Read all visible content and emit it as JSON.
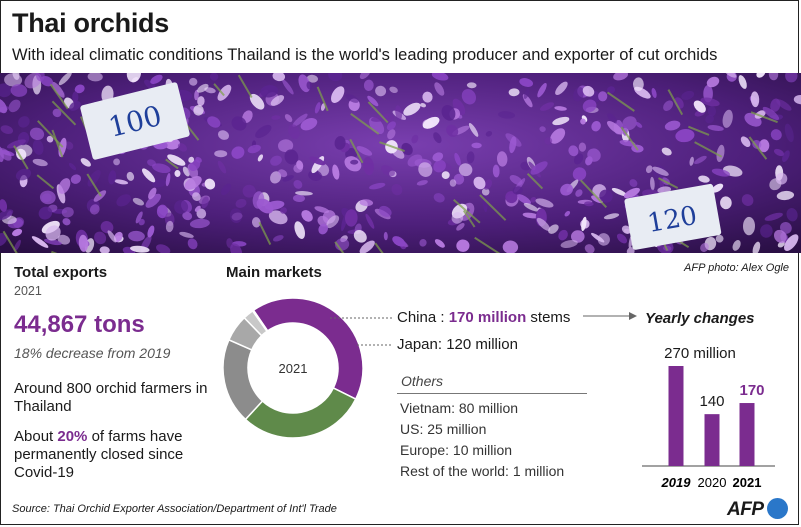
{
  "title": "Thai orchids",
  "subtitle": "With ideal climatic conditions Thailand is the world's leading producer and exporter of cut orchids",
  "photo": {
    "tag_left": "100",
    "tag_right": "120",
    "credit": "AFP photo: Alex Ogle"
  },
  "total": {
    "heading": "Total exports",
    "year": "2021",
    "tons": "44,867 tons",
    "decrease": "18% decrease from 2019",
    "fact1": "Around 800 orchid farmers in Thailand",
    "fact2_prefix": "About ",
    "fact2_pct": "20%",
    "fact2_suffix": " of farms have permanently closed since Covid-19"
  },
  "markets": {
    "heading": "Main markets",
    "center_label": "2021",
    "china_prefix": "China : ",
    "china_value": "170 million",
    "china_suffix": " stems",
    "japan": "Japan: 120 million",
    "others_label": "Others",
    "others": [
      "Vietnam: 80 million",
      "US: 25 million",
      "Europe: 10 million",
      "Rest of the world: 1 million"
    ]
  },
  "footer": {
    "source": "Source: Thai Orchid Exporter Association/Department of Int'l Trade",
    "logo": "AFP"
  },
  "colors": {
    "purple": "#7b2c8f",
    "green": "#5f8a4a",
    "gray_dark": "#8c8c8c",
    "gray_light": "#bdbdbd"
  },
  "chart_data": [
    {
      "type": "pie",
      "title": "Main markets",
      "categories": [
        "China",
        "Japan",
        "Vietnam",
        "US",
        "Europe",
        "Rest of the world"
      ],
      "values": [
        170,
        120,
        80,
        25,
        10,
        1
      ],
      "unit": "million stems",
      "center_label": "2021",
      "colors": [
        "#7b2c8f",
        "#5f8a4a",
        "#8c8c8c",
        "#a8a8a8",
        "#c8c8c8",
        "#dedede"
      ]
    },
    {
      "type": "bar",
      "title": "Yearly changes",
      "categories": [
        "2019",
        "2020",
        "2021"
      ],
      "values": [
        270,
        140,
        170
      ],
      "value_labels": [
        "270 million",
        "140",
        "170"
      ],
      "colors": [
        "#7b2c8f",
        "#7b2c8f",
        "#7b2c8f"
      ],
      "ylim": [
        0,
        270
      ]
    }
  ]
}
